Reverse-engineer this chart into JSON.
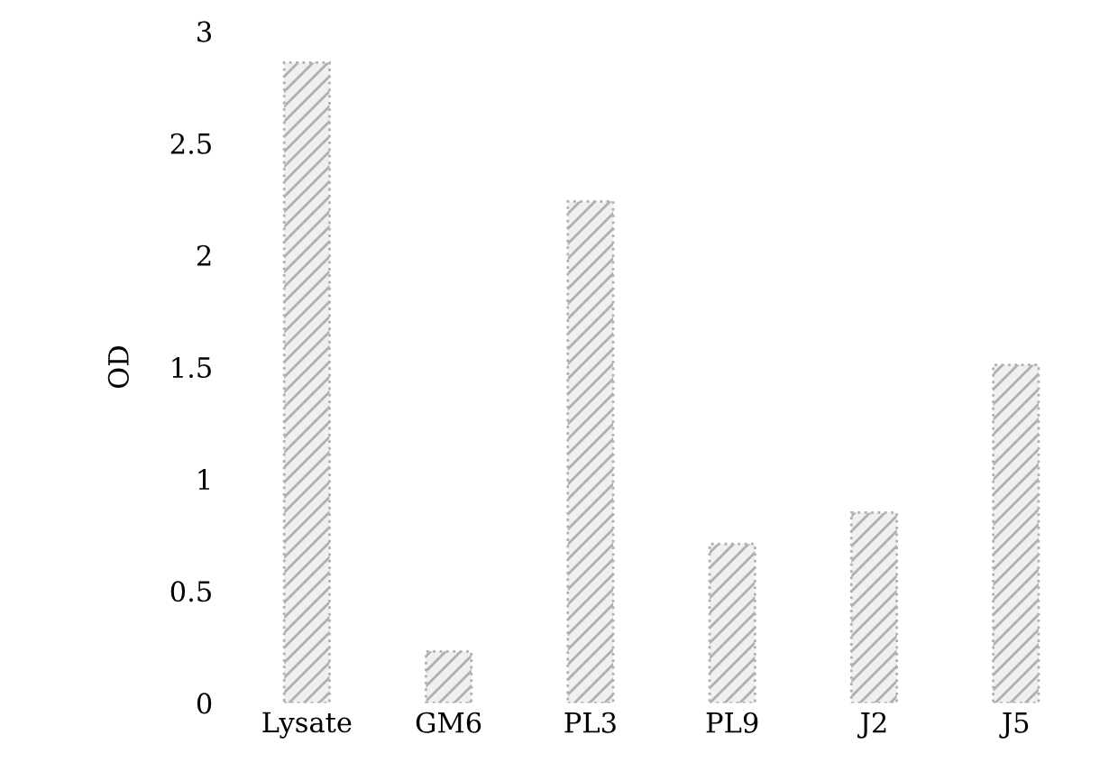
{
  "chart_data": {
    "type": "bar",
    "ylabel": "OD",
    "categories": [
      "Lysate",
      "GM6",
      "PL3",
      "PL9",
      "J2",
      "J5"
    ],
    "values": [
      2.86,
      0.23,
      2.24,
      0.71,
      0.85,
      1.51
    ],
    "color": "#b0b0b0",
    "ylim": [
      0,
      3
    ],
    "yticks": [
      0,
      0.5,
      1,
      1.5,
      2,
      2.5,
      3
    ],
    "grid": false,
    "legend": false
  }
}
